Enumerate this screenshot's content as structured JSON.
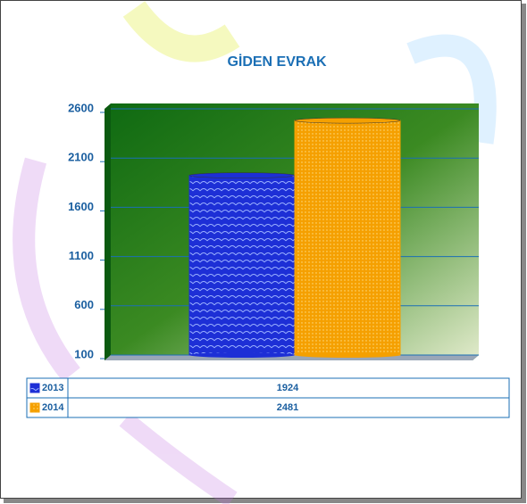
{
  "chart_data": {
    "type": "bar",
    "title": "GİDEN EVRAK",
    "categories": [
      null
    ],
    "series": [
      {
        "name": "2013",
        "color": "#1d2fd6",
        "values": [
          1924
        ]
      },
      {
        "name": "2014",
        "color": "#f5a000",
        "values": [
          2481
        ]
      }
    ],
    "ylim": [
      100,
      2600
    ],
    "yticks": [
      100,
      600,
      1100,
      1600,
      2100,
      2600
    ],
    "grid": true
  }
}
